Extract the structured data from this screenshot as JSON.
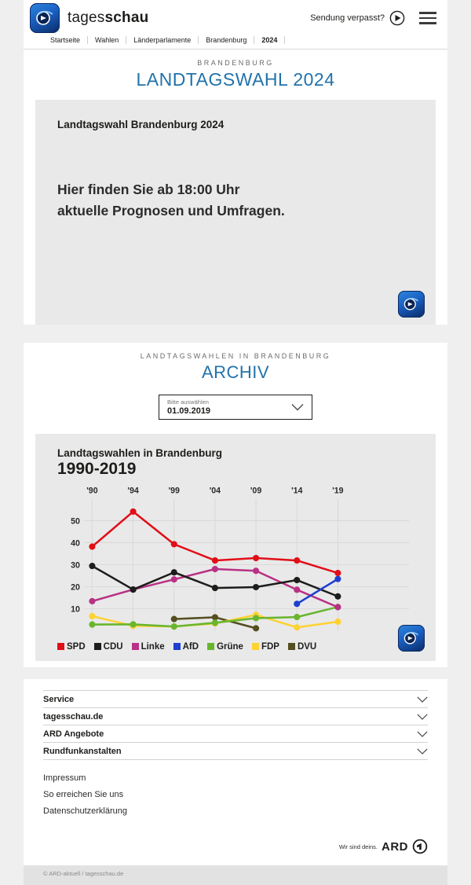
{
  "header": {
    "brand_regular": "tages",
    "brand_bold": "schau",
    "missed_show_label": "Sendung verpasst?",
    "breadcrumb": [
      "Startseite",
      "Wahlen",
      "Länderparlamente",
      "Brandenburg",
      "2024"
    ]
  },
  "election_section": {
    "kicker": "BRANDENBURG",
    "title": "LANDTAGSWAHL 2024",
    "teaser": {
      "heading": "Landtagswahl Brandenburg 2024",
      "message_line1": "Hier finden Sie ab 18:00 Uhr",
      "message_line2": "aktuelle Prognosen und Umfragen."
    }
  },
  "archive_section": {
    "kicker": "LANDTAGSWAHLEN IN BRANDENBURG",
    "title": "ARCHIV",
    "select": {
      "label": "Bitte auswählen",
      "value": "01.09.2019"
    }
  },
  "chart_data": {
    "type": "line",
    "title": "Landtagswahlen in Brandenburg",
    "subtitle": "1990-2019",
    "x_labels": [
      "'90",
      "'94",
      "'99",
      "'04",
      "'09",
      "'14",
      "'19"
    ],
    "x_years": [
      1990,
      1994,
      1999,
      2004,
      2009,
      2014,
      2019
    ],
    "y_ticks": [
      10,
      20,
      30,
      40,
      50
    ],
    "ylim": [
      0,
      58
    ],
    "unit": "%",
    "grid": true,
    "legend_position": "bottom",
    "series": [
      {
        "name": "SPD",
        "color": "#e10e17",
        "values": [
          38.2,
          54.1,
          39.3,
          31.9,
          33.0,
          31.9,
          26.2
        ]
      },
      {
        "name": "CDU",
        "color": "#1d1d1b",
        "values": [
          29.4,
          18.7,
          26.5,
          19.4,
          19.8,
          23.0,
          15.6
        ]
      },
      {
        "name": "Linke",
        "color": "#b93184",
        "values": [
          13.4,
          18.7,
          23.3,
          28.0,
          27.2,
          18.6,
          10.7
        ]
      },
      {
        "name": "AfD",
        "color": "#1e3fd0",
        "values": [
          null,
          null,
          null,
          null,
          null,
          12.2,
          23.5
        ]
      },
      {
        "name": "Grüne",
        "color": "#69b52e",
        "values": [
          2.8,
          2.9,
          1.9,
          3.6,
          5.7,
          6.2,
          10.8
        ]
      },
      {
        "name": "FDP",
        "color": "#fdd231",
        "values": [
          6.6,
          2.2,
          1.9,
          3.3,
          7.2,
          1.5,
          4.1
        ]
      },
      {
        "name": "DVU",
        "color": "#554e20",
        "values": [
          null,
          null,
          5.3,
          6.1,
          1.1,
          null,
          null
        ]
      }
    ]
  },
  "footer": {
    "accordion": [
      "Service",
      "tagesschau.de",
      "ARD Angebote",
      "Rundfunkanstalten"
    ],
    "links": [
      "Impressum",
      "So erreichen Sie uns",
      "Datenschutzerklärung"
    ],
    "brand_claim": "Wir sind deins.",
    "brand_name": "ARD",
    "copyright": "© ARD-aktuell / tagesschau.de"
  },
  "colors": {
    "accent_blue": "#2172ab",
    "page_bg": "#efefef",
    "box_bg": "#e9e9e9",
    "text_dark": "#1d1d1b"
  }
}
